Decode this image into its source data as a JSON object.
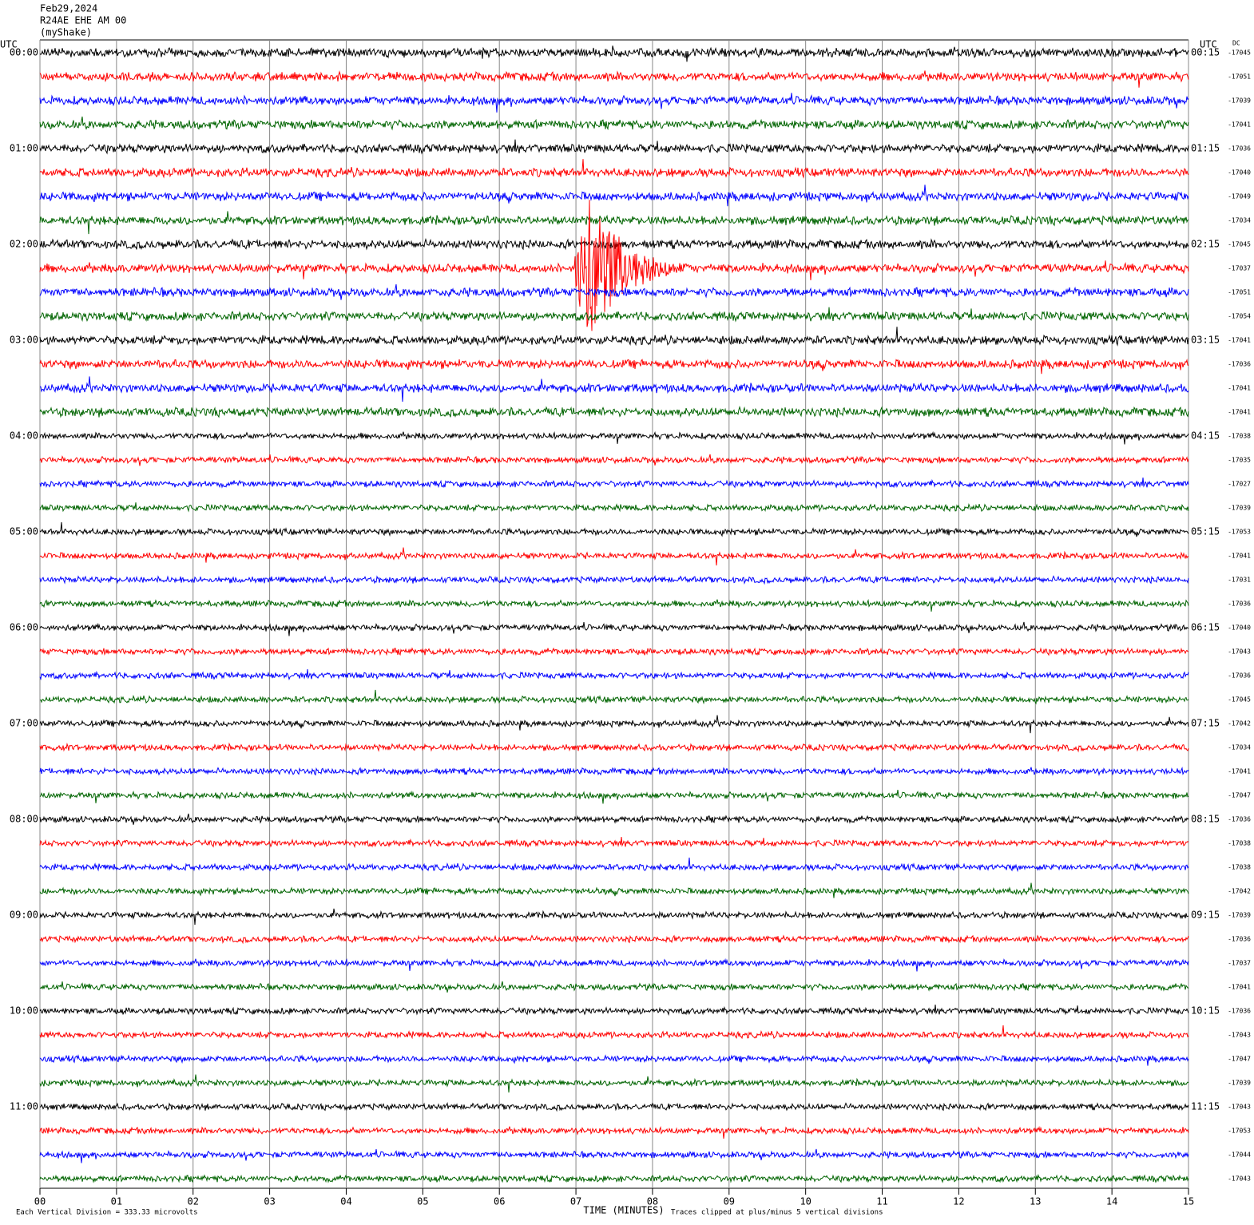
{
  "chart_data": {
    "type": "helicorder",
    "header": [
      "Feb29,2024",
      "R24AE EHE AM 00",
      "(myShake)"
    ],
    "left_axis_title": "UTC",
    "right_axis_title": "UTC",
    "dc_title": "DC",
    "left_labels": [
      "00:00",
      "01:00",
      "02:00",
      "03:00",
      "04:00",
      "05:00",
      "06:00",
      "07:00",
      "08:00",
      "09:00",
      "10:00",
      "11:00"
    ],
    "right_labels": [
      "00:15",
      "01:15",
      "02:15",
      "03:15",
      "04:15",
      "05:15",
      "06:15",
      "07:15",
      "08:15",
      "09:15",
      "10:15",
      "11:15"
    ],
    "dc_values": [
      -17045,
      -17051,
      -17039,
      -17041,
      -17036,
      -17040,
      -17049,
      -17034,
      -17045,
      -17037,
      -17051,
      -17054,
      -17041,
      -17036,
      -17041,
      -17041,
      -17038,
      -17035,
      -17027,
      -17039,
      -17053,
      -17041,
      -17031,
      -17036,
      -17040,
      -17043,
      -17036,
      -17045,
      -17042,
      -17034,
      -17041,
      -17047,
      -17036,
      -17038,
      -17038,
      -17042,
      -17039,
      -17036,
      -17037,
      -17041,
      -17036,
      -17043,
      -17047,
      -17039,
      -17043,
      -17053,
      -17044,
      -17043
    ],
    "colors": [
      "#000000",
      "#ff0000",
      "#0000ff",
      "#006400"
    ],
    "xlim": [
      0,
      15
    ],
    "xticks": [
      {
        "value": 0,
        "label": "00"
      },
      {
        "value": 1,
        "label": "01"
      },
      {
        "value": 2,
        "label": "02"
      },
      {
        "value": 3,
        "label": "03"
      },
      {
        "value": 4,
        "label": "04"
      },
      {
        "value": 5,
        "label": "05"
      },
      {
        "value": 6,
        "label": "06"
      },
      {
        "value": 7,
        "label": "07"
      },
      {
        "value": 8,
        "label": "08"
      },
      {
        "value": 9,
        "label": "09"
      },
      {
        "value": 10,
        "label": "10"
      },
      {
        "value": 11,
        "label": "11"
      },
      {
        "value": 12,
        "label": "12"
      },
      {
        "value": 13,
        "label": "13"
      },
      {
        "value": 14,
        "label": "14"
      },
      {
        "value": 15,
        "label": "15"
      }
    ],
    "xlabel": "TIME (MINUTES)",
    "scale_note": "Each Vertical Division =  333.33 microvolts",
    "clip_note": "Traces clipped at plus/minus 5 vertical divisions",
    "grid": true
  }
}
